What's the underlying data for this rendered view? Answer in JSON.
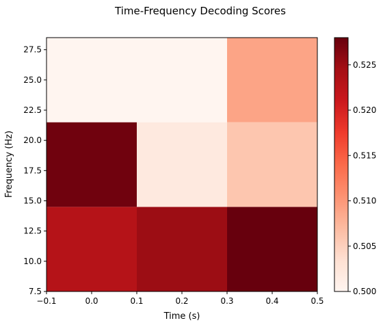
{
  "chart_data": {
    "type": "heatmap",
    "title": "Time-Frequency Decoding Scores",
    "xlabel": "Time (s)",
    "ylabel": "Frequency (Hz)",
    "xlim": [
      -0.1,
      0.5
    ],
    "ylim": [
      7.5,
      28.5
    ],
    "xticks": [
      -0.1,
      0.0,
      0.1,
      0.2,
      0.3,
      0.4,
      0.5
    ],
    "xtick_labels": [
      "−0.1",
      "0.0",
      "0.1",
      "0.2",
      "0.3",
      "0.4",
      "0.5"
    ],
    "yticks": [
      7.5,
      10.0,
      12.5,
      15.0,
      17.5,
      20.0,
      22.5,
      25.0,
      27.5
    ],
    "ytick_labels": [
      "7.5",
      "10.0",
      "12.5",
      "15.0",
      "17.5",
      "20.0",
      "22.5",
      "25.0",
      "27.5"
    ],
    "colormap": "Reds",
    "colorbar": {
      "vmin": 0.5,
      "vmax": 0.528,
      "ticks": [
        0.5,
        0.505,
        0.51,
        0.515,
        0.52,
        0.525
      ],
      "tick_labels": [
        "0.500",
        "0.505",
        "0.510",
        "0.515",
        "0.520",
        "0.525"
      ]
    },
    "x_edges": [
      -0.1,
      0.1,
      0.3,
      0.5
    ],
    "y_edges": [
      7.5,
      14.5,
      21.5,
      28.5
    ],
    "values": [
      [
        0.523,
        0.525,
        0.5285
      ],
      [
        0.5275,
        0.502,
        0.506
      ],
      [
        0.5,
        0.5,
        0.509
      ]
    ]
  }
}
